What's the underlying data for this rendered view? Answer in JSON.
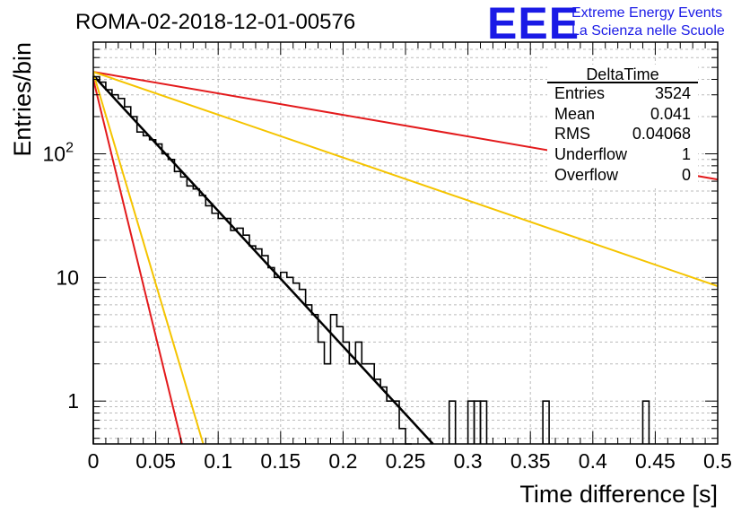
{
  "header": {
    "title": "ROMA-02-2018-12-01-00576",
    "logo": "EEE",
    "brand_line1": "Extreme Energy Events",
    "brand_line2": "La Scienza nelle Scuole"
  },
  "stats_box": {
    "title": "DeltaTime",
    "rows": [
      {
        "label": "Entries",
        "value": "3524"
      },
      {
        "label": "Mean",
        "value": "0.041"
      },
      {
        "label": "RMS",
        "value": "0.04068"
      },
      {
        "label": "Underflow",
        "value": "1"
      },
      {
        "label": "Overflow",
        "value": "0"
      }
    ]
  },
  "chart_data": {
    "type": "histogram",
    "title": "ROMA-02-2018-12-01-00576",
    "xlabel": "Time difference [s]",
    "ylabel": "Entries/bin",
    "xlim": [
      0,
      0.5
    ],
    "ylim": [
      0.45,
      800
    ],
    "y_scale": "log",
    "grid": true,
    "x_ticks": [
      "0",
      "0.05",
      "0.1",
      "0.15",
      "0.2",
      "0.25",
      "0.3",
      "0.35",
      "0.4",
      "0.45",
      "0.5"
    ],
    "y_ticks": [
      "1",
      "10",
      "10²"
    ],
    "bin_width": 0.005,
    "histogram_values": [
      420,
      380,
      330,
      300,
      280,
      240,
      200,
      150,
      140,
      130,
      120,
      100,
      90,
      72,
      65,
      55,
      52,
      46,
      38,
      33,
      30,
      30,
      24,
      25,
      22,
      18,
      17,
      15,
      12,
      10,
      11,
      10,
      9,
      8,
      6,
      5,
      3,
      2,
      5,
      4,
      3,
      2,
      3,
      2,
      2,
      1.5,
      1.3,
      1,
      1,
      0.6,
      0.4
    ],
    "curves": [
      {
        "color": "#000000",
        "from": [
          0,
          430
        ],
        "to": [
          0.272,
          0.45
        ]
      },
      {
        "color": "#e31a1c",
        "from": [
          0,
          460
        ],
        "to": [
          0.5,
          62
        ]
      },
      {
        "color": "#f5c400",
        "from": [
          0,
          460
        ],
        "to": [
          0.5,
          8.5
        ]
      },
      {
        "color": "#f5c400",
        "from": [
          0,
          450
        ],
        "to": [
          0.088,
          0.45
        ]
      },
      {
        "color": "#e31a1c",
        "from": [
          0,
          400
        ],
        "to": [
          0.071,
          0.45
        ]
      }
    ]
  },
  "colors": {
    "histogram": "#000000",
    "fit": "#000000",
    "red_line": "#e31a1c",
    "yellow_line": "#f5c400",
    "brand_blue": "#1a1ae6"
  }
}
